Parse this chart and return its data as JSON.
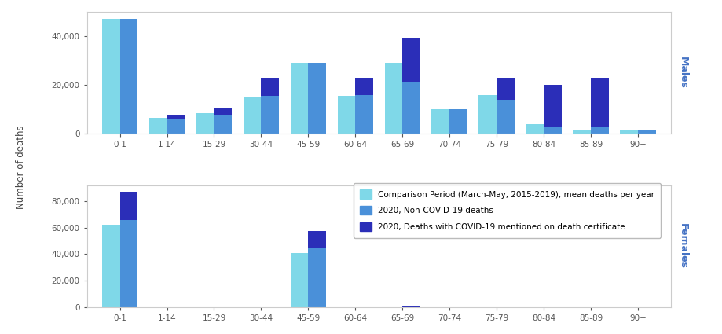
{
  "colors": {
    "comparison": "#7FD8E8",
    "non_covid": "#4A90D9",
    "covid": "#2B2EB8"
  },
  "legend_labels": [
    "Comparison Period (March-May, 2015-2019), mean deaths per year",
    "2020, Non-COVID-19 deaths",
    "2020, Deaths with COVID-19 mentioned on death certificate"
  ],
  "male_cats": [
    "0-1",
    "1-14",
    "15-29",
    "30-44",
    "45-59",
    "60-64",
    "65-69",
    "70-74",
    "75-79",
    "80-84",
    "85-89",
    "90+"
  ],
  "m_comp": [
    47000,
    6500,
    8500,
    15000,
    29000,
    15500,
    29000,
    10000,
    16000,
    4000,
    1500,
    1500
  ],
  "m_noncovid": [
    47000,
    6000,
    8000,
    15500,
    29000,
    16000,
    21500,
    10000,
    14000,
    3000,
    3000,
    1500
  ],
  "m_covid": [
    0,
    2000,
    2500,
    7500,
    0,
    7000,
    18000,
    0,
    9000,
    17000,
    20000,
    0
  ],
  "m_ylim": 50000,
  "m_yticks": [
    0,
    20000,
    40000
  ],
  "f_comp": [
    62000,
    0,
    0,
    0,
    41000,
    0,
    0,
    0,
    0,
    0,
    0,
    0
  ],
  "f_noncovid": [
    66000,
    0,
    0,
    0,
    45000,
    0,
    0,
    0,
    0,
    0,
    0,
    0
  ],
  "f_covid": [
    21000,
    0,
    0,
    0,
    12500,
    0,
    1000,
    0,
    0,
    0,
    0,
    0
  ],
  "f_ylim": 92000,
  "f_yticks": [
    0,
    20000,
    40000,
    60000,
    80000
  ],
  "bar_width": 0.38,
  "fig_bg": "#FFFFFF",
  "panel_bg": "#FFFFFF",
  "ylabel": "Number of deaths",
  "male_label": "Males",
  "female_label": "Females"
}
